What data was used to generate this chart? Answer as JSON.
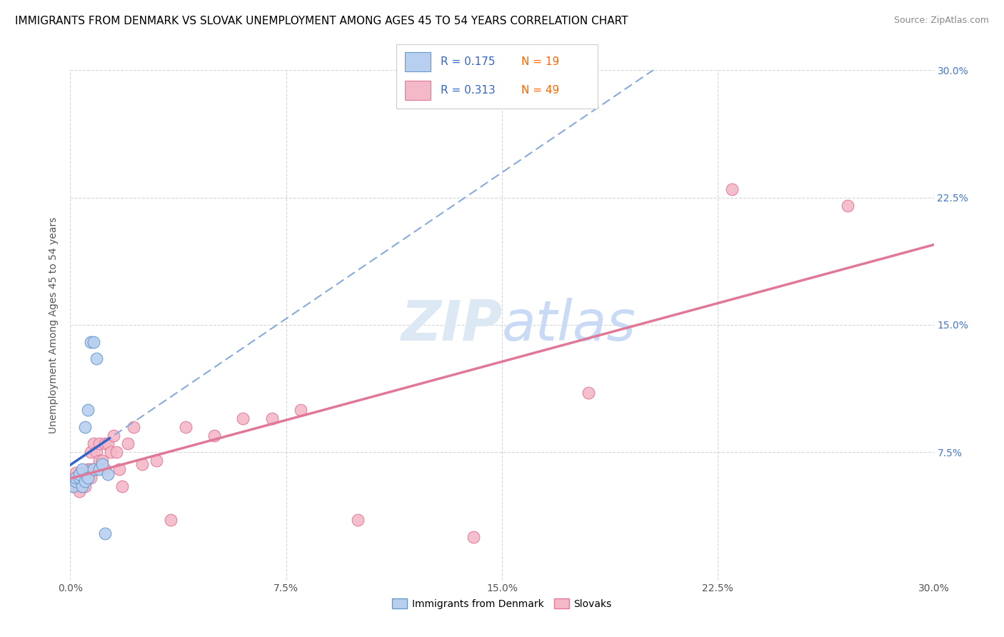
{
  "title": "IMMIGRANTS FROM DENMARK VS SLOVAK UNEMPLOYMENT AMONG AGES 45 TO 54 YEARS CORRELATION CHART",
  "source": "Source: ZipAtlas.com",
  "ylabel": "Unemployment Among Ages 45 to 54 years",
  "xlim": [
    0.0,
    0.3
  ],
  "ylim": [
    0.0,
    0.3
  ],
  "xtick_labels": [
    "0.0%",
    "7.5%",
    "15.0%",
    "22.5%",
    "30.0%"
  ],
  "xtick_vals": [
    0.0,
    0.075,
    0.15,
    0.225,
    0.3
  ],
  "ytick_vals": [
    0.075,
    0.15,
    0.225,
    0.3
  ],
  "right_ytick_labels": [
    "7.5%",
    "15.0%",
    "22.5%",
    "30.0%"
  ],
  "right_ytick_vals": [
    0.075,
    0.15,
    0.225,
    0.3
  ],
  "denmark_color": "#b8d0f0",
  "denmark_edge": "#6699cc",
  "slovak_color": "#f5b8c8",
  "slovak_edge": "#e07898",
  "denmark_line_color": "#3366cc",
  "slovak_line_color": "#e07898",
  "dashed_line_color": "#88aadd",
  "legend_r_color": "#3366cc",
  "legend_n_color": "#ff6600",
  "watermark_color": "#dde8f5",
  "denmark_x": [
    0.001,
    0.002,
    0.002,
    0.003,
    0.003,
    0.004,
    0.004,
    0.005,
    0.005,
    0.006,
    0.006,
    0.007,
    0.008,
    0.008,
    0.009,
    0.01,
    0.011,
    0.012,
    0.013
  ],
  "denmark_y": [
    0.055,
    0.058,
    0.06,
    0.06,
    0.062,
    0.055,
    0.065,
    0.058,
    0.09,
    0.06,
    0.1,
    0.14,
    0.14,
    0.065,
    0.13,
    0.065,
    0.068,
    0.027,
    0.062
  ],
  "slovak_x": [
    0.001,
    0.001,
    0.002,
    0.002,
    0.002,
    0.003,
    0.003,
    0.003,
    0.004,
    0.004,
    0.004,
    0.005,
    0.005,
    0.005,
    0.006,
    0.006,
    0.007,
    0.007,
    0.007,
    0.008,
    0.008,
    0.009,
    0.009,
    0.01,
    0.01,
    0.011,
    0.012,
    0.012,
    0.013,
    0.014,
    0.015,
    0.016,
    0.017,
    0.018,
    0.02,
    0.022,
    0.025,
    0.03,
    0.035,
    0.04,
    0.05,
    0.06,
    0.07,
    0.08,
    0.1,
    0.14,
    0.18,
    0.23,
    0.27
  ],
  "slovak_y": [
    0.055,
    0.06,
    0.055,
    0.058,
    0.063,
    0.052,
    0.058,
    0.062,
    0.055,
    0.06,
    0.063,
    0.055,
    0.06,
    0.063,
    0.06,
    0.065,
    0.06,
    0.065,
    0.075,
    0.065,
    0.08,
    0.065,
    0.075,
    0.07,
    0.08,
    0.07,
    0.065,
    0.08,
    0.08,
    0.075,
    0.085,
    0.075,
    0.065,
    0.055,
    0.08,
    0.09,
    0.068,
    0.07,
    0.035,
    0.09,
    0.085,
    0.095,
    0.095,
    0.1,
    0.035,
    0.025,
    0.11,
    0.23,
    0.22
  ],
  "marker_size": 12,
  "title_fontsize": 11,
  "axis_fontsize": 10
}
